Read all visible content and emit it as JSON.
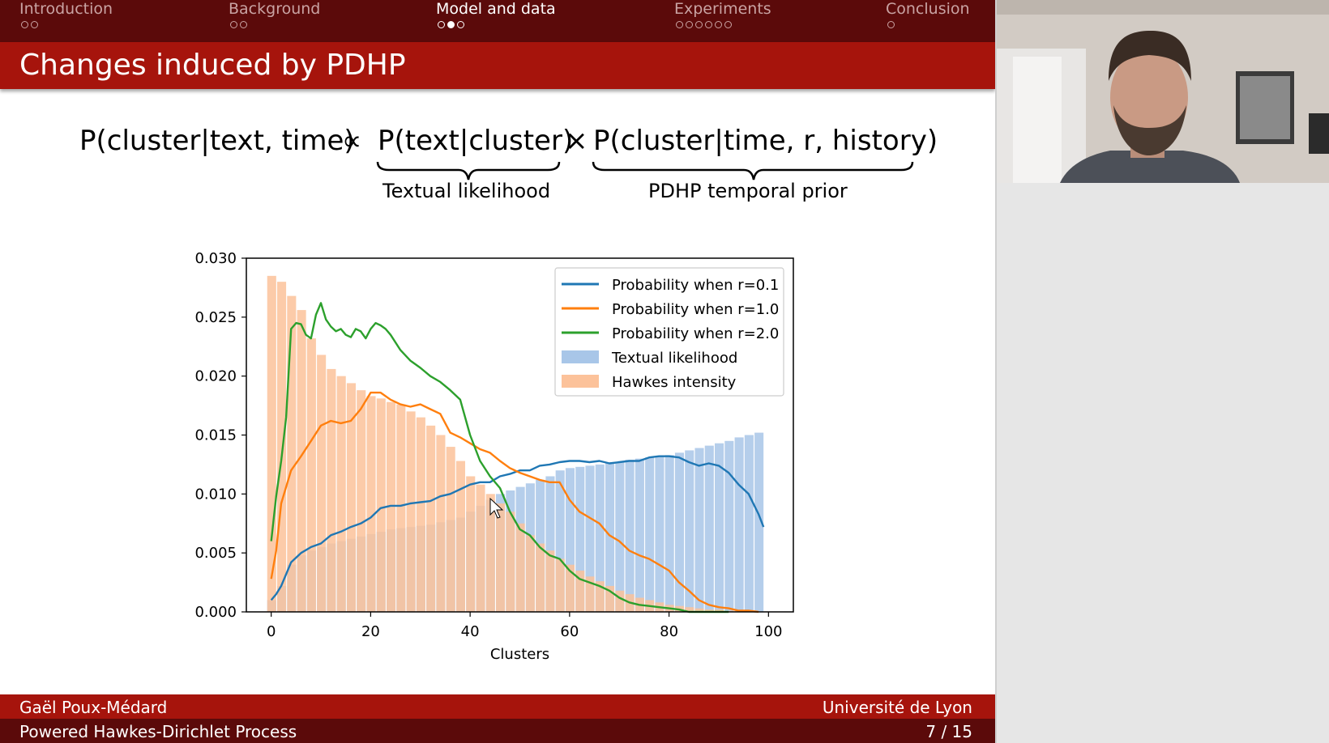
{
  "nav": {
    "sections": [
      {
        "label": "Introduction",
        "dots": 2,
        "filled": -1,
        "active": false
      },
      {
        "label": "Background",
        "dots": 2,
        "filled": -1,
        "active": false
      },
      {
        "label": "Model and data",
        "dots": 3,
        "filled": 1,
        "active": true
      },
      {
        "label": "Experiments",
        "dots": 6,
        "filled": -1,
        "active": false
      },
      {
        "label": "Conclusion",
        "dots": 1,
        "filled": -1,
        "active": false
      }
    ]
  },
  "slide": {
    "title": "Changes induced by PDHP",
    "formula": {
      "lhs": "P(cluster|text, time)",
      "propto": "∝",
      "term1": "P(text|cluster)",
      "times": "×",
      "term2": "P(cluster|time, r, history)",
      "brace1_label": "Textual likelihood",
      "brace2_label": "PDHP temporal prior"
    }
  },
  "footer": {
    "author": "Gaël Poux-Médard",
    "institution": "Université de Lyon",
    "short_title": "Powered Hawkes-Dirichlet Process",
    "page": "7 / 15"
  },
  "colors": {
    "nav_bg": "#5b0a0a",
    "title_bg": "#a6140c",
    "blue": "#1f77b4",
    "orange": "#ff7f0e",
    "green": "#2ca02c",
    "bar_blue": "#a8c6e8",
    "bar_orange": "#fcc29a"
  },
  "chart_data": {
    "type": "line",
    "xlabel": "Clusters",
    "ylabel": "",
    "xlim": [
      -5,
      105
    ],
    "ylim": [
      0,
      0.03
    ],
    "xticks": [
      0,
      20,
      40,
      60,
      80,
      100
    ],
    "yticks": [
      0.0,
      0.005,
      0.01,
      0.015,
      0.02,
      0.025,
      0.03
    ],
    "ytick_labels": [
      "0.000",
      "0.005",
      "0.010",
      "0.015",
      "0.020",
      "0.025",
      "0.030"
    ],
    "legend_position": "top-right",
    "series": [
      {
        "name": "Probability when r=0.1",
        "type": "line",
        "color": "#1f77b4",
        "x": [
          0,
          1,
          2,
          4,
          6,
          8,
          10,
          12,
          14,
          16,
          18,
          20,
          22,
          24,
          26,
          28,
          30,
          32,
          34,
          36,
          38,
          40,
          42,
          44,
          46,
          48,
          50,
          52,
          54,
          56,
          58,
          60,
          62,
          64,
          66,
          68,
          70,
          72,
          74,
          76,
          78,
          80,
          82,
          84,
          86,
          88,
          90,
          92,
          94,
          96,
          98,
          99
        ],
        "y": [
          0.001,
          0.0015,
          0.0022,
          0.0042,
          0.005,
          0.0055,
          0.0058,
          0.0065,
          0.0068,
          0.0072,
          0.0075,
          0.008,
          0.0088,
          0.009,
          0.009,
          0.0092,
          0.0093,
          0.0094,
          0.0098,
          0.01,
          0.0104,
          0.0108,
          0.011,
          0.011,
          0.0115,
          0.0117,
          0.012,
          0.012,
          0.0124,
          0.0125,
          0.0127,
          0.0128,
          0.0128,
          0.0127,
          0.0128,
          0.0126,
          0.0127,
          0.0128,
          0.0128,
          0.0131,
          0.0132,
          0.0132,
          0.0131,
          0.0127,
          0.0124,
          0.0126,
          0.0124,
          0.0118,
          0.0108,
          0.01,
          0.0083,
          0.0072
        ]
      },
      {
        "name": "Probability when r=1.0",
        "type": "line",
        "color": "#ff7f0e",
        "x": [
          0,
          1,
          2,
          4,
          6,
          8,
          10,
          12,
          14,
          16,
          18,
          20,
          22,
          24,
          26,
          28,
          30,
          32,
          34,
          36,
          38,
          40,
          42,
          44,
          46,
          48,
          50,
          52,
          54,
          56,
          58,
          60,
          62,
          64,
          66,
          68,
          70,
          72,
          74,
          76,
          78,
          80,
          82,
          84,
          86,
          88,
          90,
          92,
          94,
          96,
          98
        ],
        "y": [
          0.0028,
          0.0052,
          0.0092,
          0.012,
          0.0132,
          0.0145,
          0.0158,
          0.0162,
          0.016,
          0.0162,
          0.0172,
          0.0186,
          0.0186,
          0.018,
          0.0176,
          0.0174,
          0.0176,
          0.0172,
          0.0168,
          0.0152,
          0.0148,
          0.0143,
          0.0138,
          0.0135,
          0.0128,
          0.0122,
          0.0118,
          0.0115,
          0.0112,
          0.011,
          0.011,
          0.0095,
          0.0085,
          0.008,
          0.0075,
          0.0065,
          0.006,
          0.0052,
          0.0048,
          0.0045,
          0.004,
          0.0035,
          0.0025,
          0.0018,
          0.001,
          0.0006,
          0.0004,
          0.0003,
          0.0001,
          0.0001,
          0.0
        ]
      },
      {
        "name": "Probability when r=2.0",
        "type": "line",
        "color": "#2ca02c",
        "x": [
          0,
          1,
          2,
          3,
          4,
          5,
          6,
          7,
          8,
          9,
          10,
          11,
          12,
          13,
          14,
          15,
          16,
          17,
          18,
          19,
          20,
          21,
          22,
          23,
          24,
          26,
          28,
          30,
          32,
          34,
          36,
          38,
          40,
          42,
          44,
          46,
          48,
          50,
          52,
          54,
          56,
          58,
          60,
          62,
          64,
          66,
          68,
          70,
          72,
          74,
          76,
          78,
          80,
          82,
          84,
          86,
          88,
          90,
          92
        ],
        "y": [
          0.006,
          0.0098,
          0.0128,
          0.0165,
          0.024,
          0.0245,
          0.0244,
          0.0235,
          0.0232,
          0.0252,
          0.0262,
          0.0248,
          0.0242,
          0.0238,
          0.024,
          0.0235,
          0.0233,
          0.024,
          0.0238,
          0.0232,
          0.024,
          0.0245,
          0.0243,
          0.024,
          0.0235,
          0.0222,
          0.0213,
          0.0207,
          0.02,
          0.0195,
          0.0188,
          0.018,
          0.015,
          0.0128,
          0.0115,
          0.0105,
          0.0085,
          0.007,
          0.0065,
          0.0055,
          0.0048,
          0.0045,
          0.0035,
          0.0028,
          0.0025,
          0.0022,
          0.0018,
          0.0012,
          0.0008,
          0.0006,
          0.0005,
          0.0004,
          0.0003,
          0.0002,
          0.0,
          0.0,
          0.0,
          0.0,
          0.0
        ]
      },
      {
        "name": "Textual likelihood",
        "type": "bar",
        "color": "#a8c6e8",
        "x": [
          0,
          2,
          4,
          6,
          8,
          10,
          12,
          14,
          16,
          18,
          20,
          22,
          24,
          26,
          28,
          30,
          32,
          34,
          36,
          38,
          40,
          42,
          44,
          46,
          48,
          50,
          52,
          54,
          56,
          58,
          60,
          62,
          64,
          66,
          68,
          70,
          72,
          74,
          76,
          78,
          80,
          82,
          84,
          86,
          88,
          90,
          92,
          94,
          96,
          98
        ],
        "y": [
          0.001,
          0.0022,
          0.004,
          0.0048,
          0.0052,
          0.0055,
          0.0058,
          0.006,
          0.0062,
          0.0064,
          0.0066,
          0.0068,
          0.007,
          0.0071,
          0.0072,
          0.0073,
          0.0074,
          0.0076,
          0.0078,
          0.008,
          0.0085,
          0.009,
          0.0095,
          0.01,
          0.0103,
          0.0106,
          0.0109,
          0.0112,
          0.0115,
          0.012,
          0.0122,
          0.0123,
          0.0124,
          0.0125,
          0.0126,
          0.0127,
          0.0129,
          0.013,
          0.0131,
          0.0132,
          0.0133,
          0.0135,
          0.0137,
          0.0139,
          0.0141,
          0.0143,
          0.0145,
          0.0148,
          0.015,
          0.0152
        ]
      },
      {
        "name": "Hawkes intensity",
        "type": "bar",
        "color": "#fcc29a",
        "x": [
          0,
          2,
          4,
          6,
          8,
          10,
          12,
          14,
          16,
          18,
          20,
          22,
          24,
          26,
          28,
          30,
          32,
          34,
          36,
          38,
          40,
          42,
          44,
          46,
          48,
          50,
          52,
          54,
          56,
          58,
          60,
          62,
          64,
          66,
          68,
          70,
          72,
          74,
          76,
          78,
          80,
          82,
          84,
          86,
          88,
          90,
          92,
          94,
          96,
          98
        ],
        "y": [
          0.0285,
          0.028,
          0.0268,
          0.0256,
          0.0232,
          0.0218,
          0.0206,
          0.02,
          0.0194,
          0.0188,
          0.0183,
          0.0181,
          0.0178,
          0.0176,
          0.017,
          0.0165,
          0.0158,
          0.015,
          0.014,
          0.0128,
          0.0115,
          0.0108,
          0.01,
          0.0092,
          0.0085,
          0.0075,
          0.0065,
          0.0058,
          0.0052,
          0.0045,
          0.004,
          0.0035,
          0.003,
          0.0026,
          0.0022,
          0.0018,
          0.0015,
          0.0012,
          0.001,
          0.0008,
          0.0006,
          0.0005,
          0.0004,
          0.0003,
          0.0002,
          0.0002,
          0.0001,
          0.0001,
          0.0001,
          0.0
        ]
      }
    ]
  }
}
